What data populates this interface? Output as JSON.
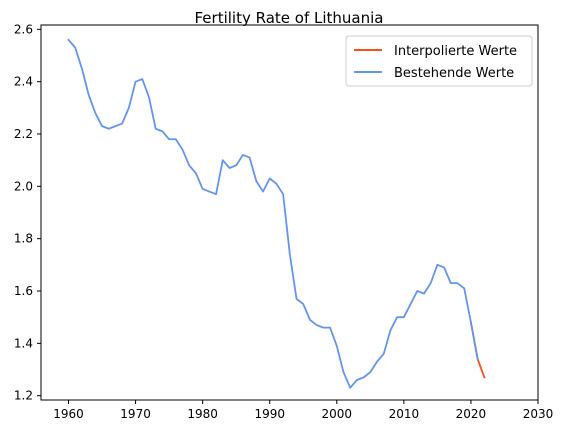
{
  "chart_data": {
    "type": "line",
    "title": "Fertility Rate of Lithuania",
    "xlabel": "",
    "ylabel": "",
    "xlim": [
      1955.9,
      2030
    ],
    "ylim": [
      1.1835,
      2.6165
    ],
    "xticks": [
      1960,
      1970,
      1980,
      1990,
      2000,
      2010,
      2020,
      2030
    ],
    "yticks": [
      1.2,
      1.4,
      1.6,
      1.8,
      2.0,
      2.2,
      2.4,
      2.6
    ],
    "ytick_labels": [
      "1.2",
      "1.4",
      "1.6",
      "1.8",
      "2.0",
      "2.2",
      "2.4",
      "2.6"
    ],
    "grid": false,
    "legend_position": "top-right",
    "series": [
      {
        "name": "Interpolierte Werte",
        "color": "#f4511e",
        "x": [
          2020,
          2021,
          2022
        ],
        "y": [
          1.48,
          1.34,
          1.27
        ]
      },
      {
        "name": "Bestehende Werte",
        "color": "#6495ed",
        "x": [
          1960,
          1961,
          1962,
          1963,
          1964,
          1965,
          1966,
          1967,
          1968,
          1969,
          1970,
          1971,
          1972,
          1973,
          1974,
          1975,
          1976,
          1977,
          1978,
          1979,
          1980,
          1981,
          1982,
          1983,
          1984,
          1985,
          1986,
          1987,
          1988,
          1989,
          1990,
          1991,
          1992,
          1993,
          1994,
          1995,
          1996,
          1997,
          1998,
          1999,
          2000,
          2001,
          2002,
          2003,
          2004,
          2005,
          2006,
          2007,
          2008,
          2009,
          2010,
          2011,
          2012,
          2013,
          2014,
          2015,
          2016,
          2017,
          2018,
          2019,
          2020,
          2021
        ],
        "y": [
          2.56,
          2.53,
          2.45,
          2.35,
          2.28,
          2.23,
          2.22,
          2.23,
          2.24,
          2.3,
          2.4,
          2.41,
          2.34,
          2.22,
          2.21,
          2.18,
          2.18,
          2.14,
          2.08,
          2.05,
          1.99,
          1.98,
          1.97,
          2.1,
          2.07,
          2.08,
          2.12,
          2.11,
          2.02,
          1.98,
          2.03,
          2.01,
          1.97,
          1.74,
          1.57,
          1.55,
          1.49,
          1.47,
          1.46,
          1.46,
          1.39,
          1.29,
          1.23,
          1.26,
          1.27,
          1.29,
          1.33,
          1.36,
          1.45,
          1.5,
          1.5,
          1.55,
          1.6,
          1.59,
          1.63,
          1.7,
          1.69,
          1.63,
          1.63,
          1.61,
          1.48,
          1.34
        ]
      }
    ]
  }
}
